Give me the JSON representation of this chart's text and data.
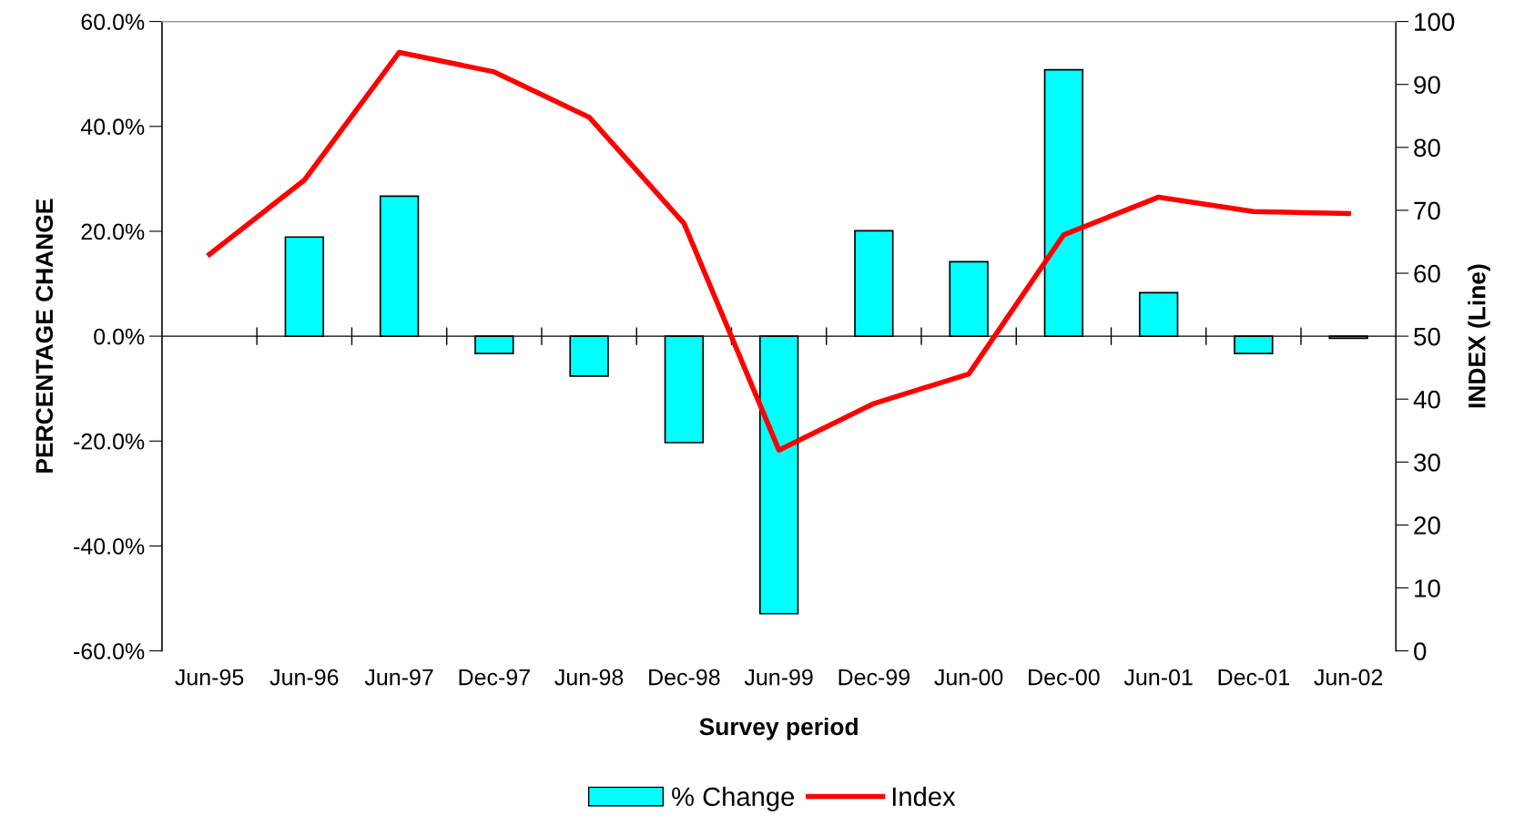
{
  "chart_data": {
    "type": "bar",
    "xlabel": "Survey period",
    "ylabel": "PERCENTAGE CHANGE",
    "y2label": "INDEX (Line)",
    "categories": [
      "Jun-95",
      "Jun-96",
      "Jun-97",
      "Dec-97",
      "Jun-98",
      "Dec-98",
      "Jun-99",
      "Dec-99",
      "Jun-00",
      "Dec-00",
      "Jun-01",
      "Dec-01",
      "Jun-02"
    ],
    "series": [
      {
        "name": "% Change",
        "color": "#00ffff",
        "values": [
          null,
          18.9,
          26.7,
          -3.3,
          -7.6,
          -20.3,
          -52.9,
          20.1,
          14.2,
          50.8,
          8.3,
          -3.3,
          -0.4
        ]
      },
      {
        "name": "Index",
        "type": "line",
        "axis": "y2",
        "color": "#ff0000",
        "values": [
          63.0,
          74.8,
          95.1,
          92.0,
          84.8,
          67.9,
          31.9,
          39.3,
          44.0,
          66.1,
          72.1,
          69.8,
          69.5
        ]
      }
    ],
    "ylim": [
      -60,
      60
    ],
    "yticks": [
      {
        "value": -60,
        "label": "-60.0%"
      },
      {
        "value": -40,
        "label": "-40.0%"
      },
      {
        "value": -20,
        "label": "-20.0%"
      },
      {
        "value": 0,
        "label": "0.0%"
      },
      {
        "value": 20,
        "label": "20.0%"
      },
      {
        "value": 40,
        "label": "40.0%"
      },
      {
        "value": 60,
        "label": "60.0%"
      }
    ],
    "y2lim": [
      0,
      100
    ],
    "y2ticks": [
      0,
      10,
      20,
      30,
      40,
      50,
      60,
      70,
      80,
      90,
      100
    ],
    "legend": "bottom",
    "marker": "none",
    "line_style": "solid"
  }
}
